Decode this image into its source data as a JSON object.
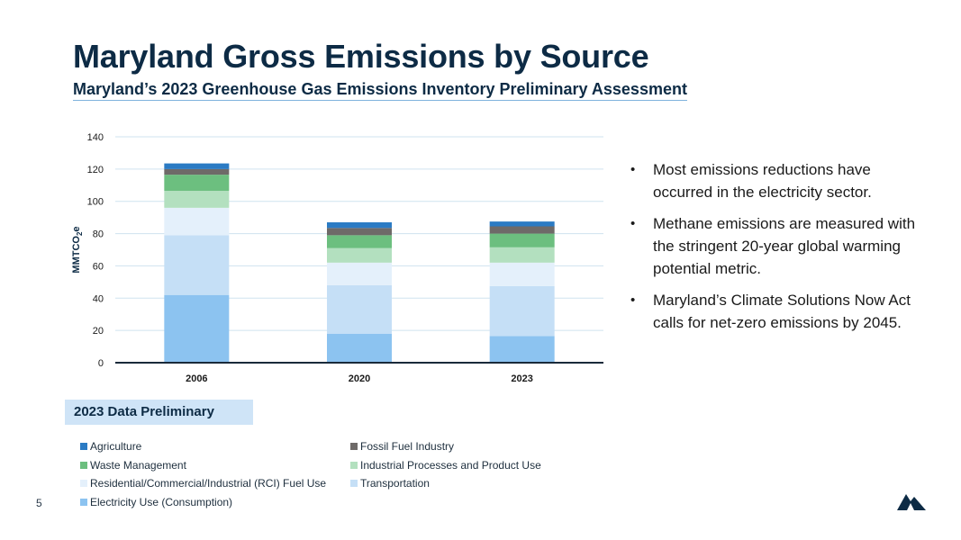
{
  "slide": {
    "title": "Maryland Gross Emissions by Source",
    "subtitle": "Maryland’s 2023 Greenhouse Gas Emissions Inventory Preliminary Assessment",
    "preliminary_label": "2023 Data Preliminary",
    "page_number": "5"
  },
  "bullets": [
    "Most emissions reductions have occurred in the electricity sector.",
    "Methane emissions are measured with the stringent 20-year global warming potential metric.",
    "Maryland’s Climate Solutions Now Act calls for net-zero emissions by 2045."
  ],
  "colors": {
    "title": "#0d2b45",
    "gridline": "#cfe3ef",
    "axis": "#1a2a3a",
    "logo": "#0d2b45"
  },
  "chart_data": {
    "type": "bar",
    "stacked": true,
    "title": "",
    "xlabel": "",
    "ylabel": "MMTCO",
    "ylabel_subscript": "2",
    "ylabel_suffix": "e",
    "ylim": [
      0,
      140
    ],
    "yticks": [
      0,
      20,
      40,
      60,
      80,
      100,
      120,
      140
    ],
    "categories": [
      "2006",
      "2020",
      "2023"
    ],
    "grid": true,
    "legend_position": "bottom",
    "series": [
      {
        "name": "Electricity Use (Consumption)",
        "color": "#8cc3f0",
        "values": [
          42,
          18,
          16.5
        ]
      },
      {
        "name": "Transportation",
        "color": "#c5dff6",
        "values": [
          37,
          30,
          31
        ]
      },
      {
        "name": "Residential/Commercial/Industrial (RCI) Fuel Use",
        "color": "#e4f0fb",
        "values": [
          17,
          14,
          14.5
        ]
      },
      {
        "name": "Industrial Processes and Product Use",
        "color": "#b3e0bf",
        "values": [
          10.5,
          9,
          9.5
        ]
      },
      {
        "name": "Waste Management",
        "color": "#6cbf7f",
        "values": [
          10,
          8,
          8.5
        ]
      },
      {
        "name": "Fossil Fuel Industry",
        "color": "#6e6a68",
        "values": [
          3.5,
          4.5,
          4.5
        ]
      },
      {
        "name": "Agriculture",
        "color": "#2b7bc4",
        "values": [
          3.5,
          3.5,
          3
        ]
      }
    ],
    "legend_order": [
      "Agriculture",
      "Fossil Fuel Industry",
      "Waste Management",
      "Industrial Processes and Product Use",
      "Residential/Commercial/Industrial (RCI) Fuel Use",
      "Transportation",
      "Electricity Use (Consumption)"
    ]
  }
}
